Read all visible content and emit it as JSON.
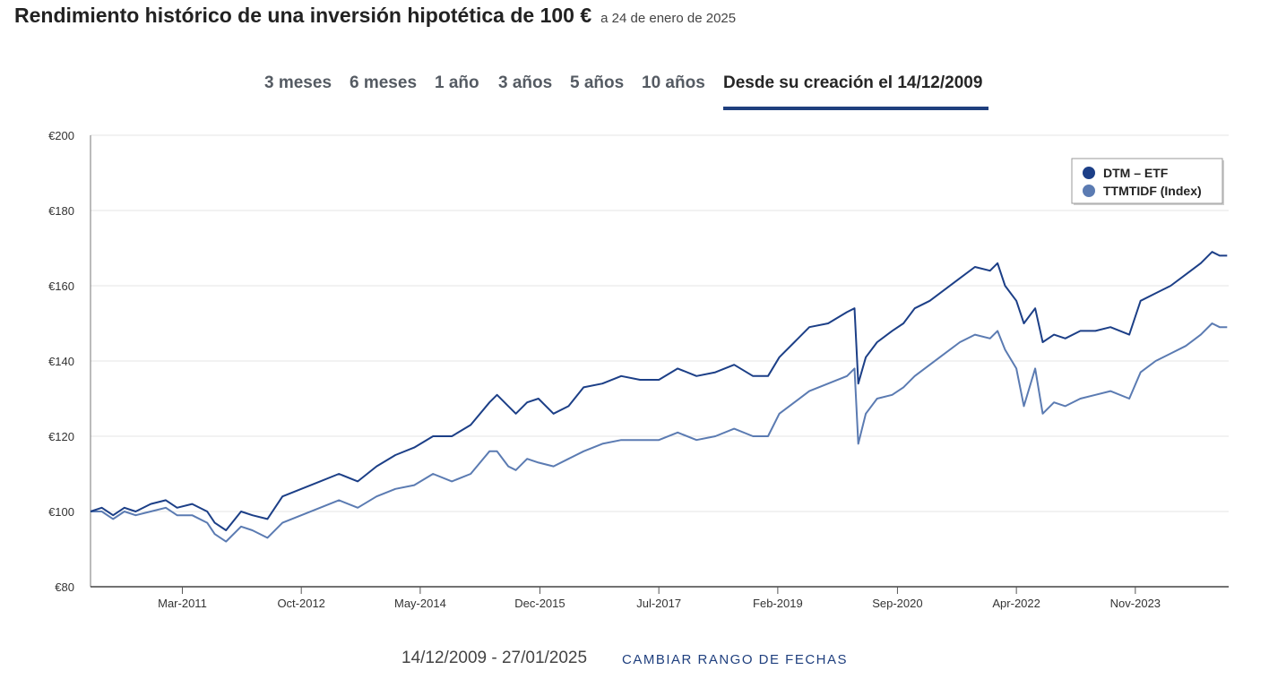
{
  "header": {
    "title": "Rendimiento histórico de una inversión hipotética de 100 €",
    "as_of": "a 24 de enero de 2025"
  },
  "tabs": [
    {
      "label": "3 meses",
      "active": false
    },
    {
      "label": "6 meses",
      "active": false
    },
    {
      "label": "1 año",
      "active": false
    },
    {
      "label": "3 años",
      "active": false
    },
    {
      "label": "5 años",
      "active": false
    },
    {
      "label": "10 años",
      "active": false
    },
    {
      "label": "Desde su creación el 14/12/2009",
      "active": true
    }
  ],
  "footer": {
    "date_range": "14/12/2009 - 27/01/2025",
    "change_range_label": "CAMBIAR RANGO DE FECHAS"
  },
  "colors": {
    "etf": "#1c3f87",
    "index": "#5b7bb2",
    "accent": "#1f3f7e",
    "grid": "#e4e4e4"
  },
  "chart_data": {
    "type": "line",
    "ylim": [
      80,
      200
    ],
    "xlim": [
      2009.95,
      2025.07
    ],
    "yticks": [
      80,
      100,
      120,
      140,
      160,
      180,
      200
    ],
    "ytick_labels": [
      "€80",
      "€100",
      "€120",
      "€140",
      "€160",
      "€180",
      "€200"
    ],
    "xtick_positions": [
      2011.17,
      2012.75,
      2014.33,
      2015.92,
      2017.5,
      2019.08,
      2020.67,
      2022.25,
      2023.83
    ],
    "xtick_labels": [
      "Mar-2011",
      "Oct-2012",
      "May-2014",
      "Dec-2015",
      "Jul-2017",
      "Feb-2019",
      "Sep-2020",
      "Apr-2022",
      "Nov-2023"
    ],
    "legend_position": "top-right",
    "series": [
      {
        "name": "DTM – ETF",
        "x": [
          2009.95,
          2010.1,
          2010.25,
          2010.4,
          2010.55,
          2010.75,
          2010.95,
          2011.1,
          2011.3,
          2011.5,
          2011.6,
          2011.75,
          2011.95,
          2012.1,
          2012.3,
          2012.5,
          2012.75,
          2013.0,
          2013.25,
          2013.5,
          2013.75,
          2014.0,
          2014.25,
          2014.5,
          2014.75,
          2015.0,
          2015.25,
          2015.35,
          2015.5,
          2015.6,
          2015.75,
          2015.9,
          2016.1,
          2016.3,
          2016.5,
          2016.75,
          2017.0,
          2017.25,
          2017.5,
          2017.75,
          2018.0,
          2018.25,
          2018.5,
          2018.75,
          2018.95,
          2019.1,
          2019.3,
          2019.5,
          2019.75,
          2020.0,
          2020.1,
          2020.15,
          2020.25,
          2020.4,
          2020.6,
          2020.75,
          2020.9,
          2021.1,
          2021.3,
          2021.5,
          2021.7,
          2021.9,
          2022.0,
          2022.1,
          2022.25,
          2022.35,
          2022.5,
          2022.6,
          2022.75,
          2022.9,
          2023.1,
          2023.3,
          2023.5,
          2023.75,
          2023.9,
          2024.1,
          2024.3,
          2024.5,
          2024.7,
          2024.85,
          2024.95,
          2025.05
        ],
        "values": [
          100,
          101,
          99,
          101,
          100,
          102,
          103,
          101,
          102,
          100,
          97,
          95,
          100,
          99,
          98,
          104,
          106,
          108,
          110,
          108,
          112,
          115,
          117,
          120,
          120,
          123,
          129,
          131,
          128,
          126,
          129,
          130,
          126,
          128,
          133,
          134,
          136,
          135,
          135,
          138,
          136,
          137,
          139,
          136,
          136,
          141,
          145,
          149,
          150,
          153,
          154,
          134,
          141,
          145,
          148,
          150,
          154,
          156,
          159,
          162,
          165,
          164,
          166,
          160,
          156,
          150,
          154,
          145,
          147,
          146,
          148,
          148,
          149,
          147,
          156,
          158,
          160,
          163,
          166,
          169,
          168,
          168
        ]
      },
      {
        "name": "TTMTIDF (Index)",
        "x": [
          2009.95,
          2010.1,
          2010.25,
          2010.4,
          2010.55,
          2010.75,
          2010.95,
          2011.1,
          2011.3,
          2011.5,
          2011.6,
          2011.75,
          2011.95,
          2012.1,
          2012.3,
          2012.5,
          2012.75,
          2013.0,
          2013.25,
          2013.5,
          2013.75,
          2014.0,
          2014.25,
          2014.5,
          2014.75,
          2015.0,
          2015.25,
          2015.35,
          2015.5,
          2015.6,
          2015.75,
          2015.9,
          2016.1,
          2016.3,
          2016.5,
          2016.75,
          2017.0,
          2017.25,
          2017.5,
          2017.75,
          2018.0,
          2018.25,
          2018.5,
          2018.75,
          2018.95,
          2019.1,
          2019.3,
          2019.5,
          2019.75,
          2020.0,
          2020.1,
          2020.15,
          2020.25,
          2020.4,
          2020.6,
          2020.75,
          2020.9,
          2021.1,
          2021.3,
          2021.5,
          2021.7,
          2021.9,
          2022.0,
          2022.1,
          2022.25,
          2022.35,
          2022.5,
          2022.6,
          2022.75,
          2022.9,
          2023.1,
          2023.3,
          2023.5,
          2023.75,
          2023.9,
          2024.1,
          2024.3,
          2024.5,
          2024.7,
          2024.85,
          2024.95,
          2025.05
        ],
        "values": [
          100,
          100,
          98,
          100,
          99,
          100,
          101,
          99,
          99,
          97,
          94,
          92,
          96,
          95,
          93,
          97,
          99,
          101,
          103,
          101,
          104,
          106,
          107,
          110,
          108,
          110,
          116,
          116,
          112,
          111,
          114,
          113,
          112,
          114,
          116,
          118,
          119,
          119,
          119,
          121,
          119,
          120,
          122,
          120,
          120,
          126,
          129,
          132,
          134,
          136,
          138,
          118,
          126,
          130,
          131,
          133,
          136,
          139,
          142,
          145,
          147,
          146,
          148,
          143,
          138,
          128,
          138,
          126,
          129,
          128,
          130,
          131,
          132,
          130,
          137,
          140,
          142,
          144,
          147,
          150,
          149,
          149
        ]
      }
    ]
  }
}
